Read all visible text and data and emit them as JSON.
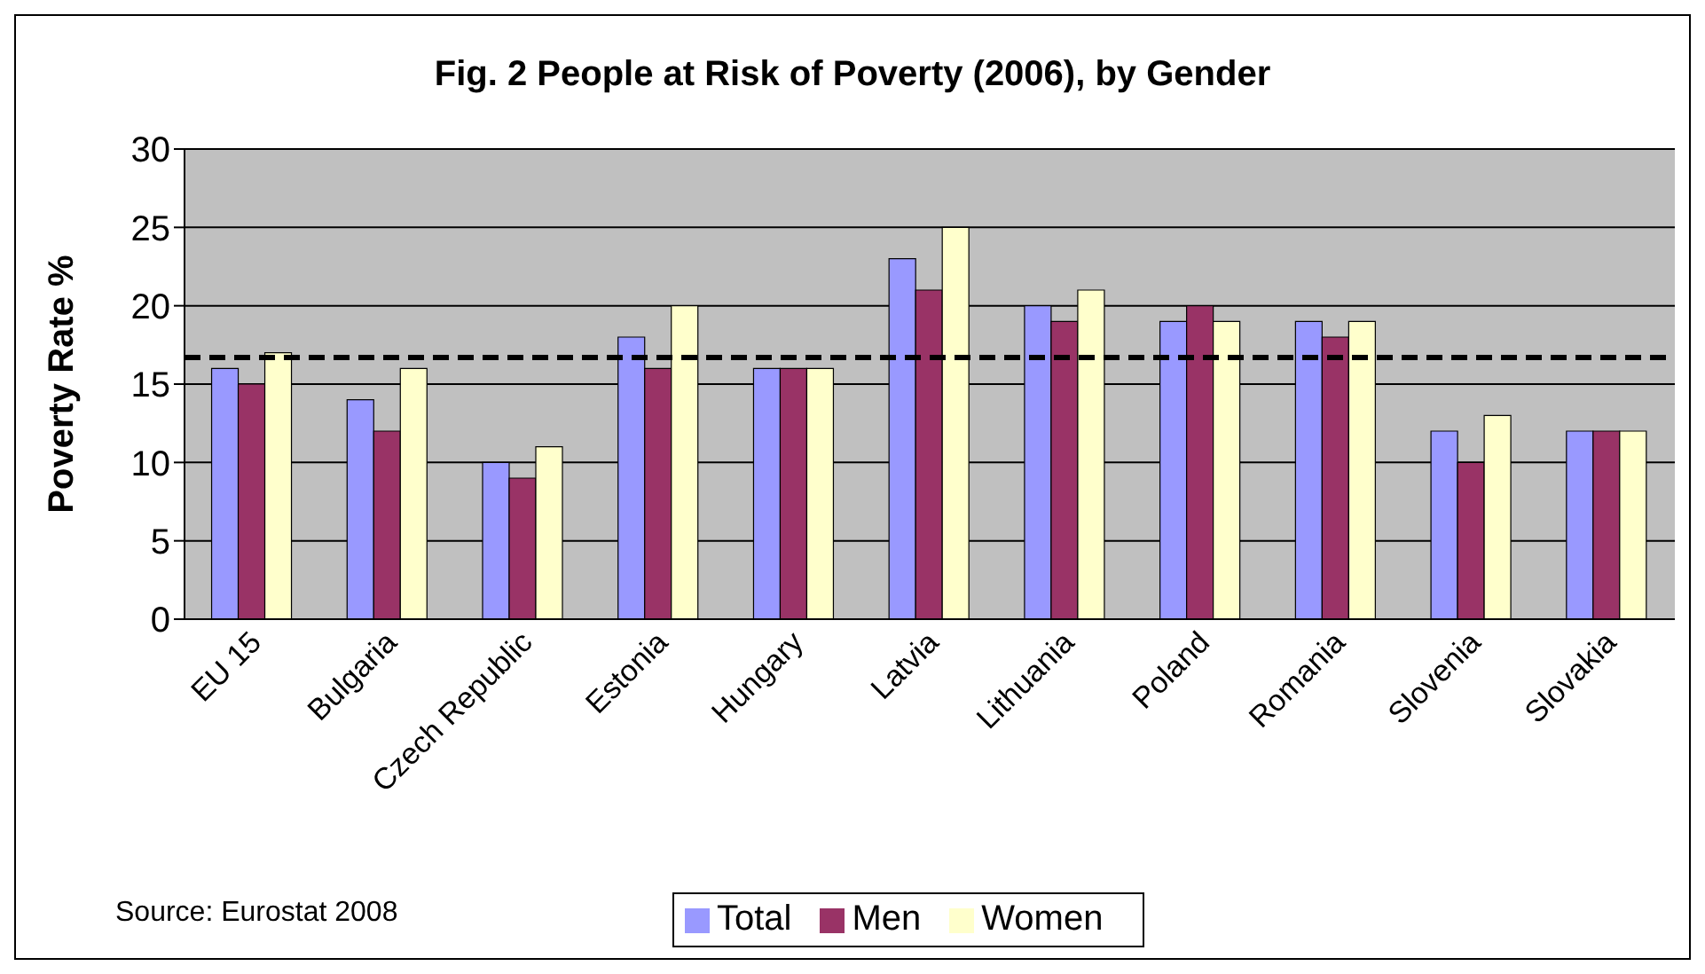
{
  "chart_data": {
    "type": "bar",
    "title": "Fig. 2 People at Risk of Poverty (2006), by Gender",
    "ylabel": "Poverty Rate %",
    "categories": [
      "EU 15",
      "Bulgaria",
      "Czech Republic",
      "Estonia",
      "Hungary",
      "Latvia",
      "Lithuania",
      "Poland",
      "Romania",
      "Slovenia",
      "Slovakia"
    ],
    "series": [
      {
        "name": "Total",
        "color": "#9999ff",
        "values": [
          16,
          14,
          10,
          18,
          16,
          23,
          20,
          19,
          19,
          12,
          12
        ]
      },
      {
        "name": "Men",
        "color": "#993366",
        "values": [
          15,
          12,
          9,
          16,
          16,
          21,
          19,
          20,
          18,
          10,
          12
        ]
      },
      {
        "name": "Women",
        "color": "#ffffcc",
        "values": [
          17,
          16,
          11,
          20,
          16,
          25,
          21,
          19,
          19,
          13,
          12
        ]
      }
    ],
    "ylim": [
      0,
      30
    ],
    "yticks": [
      0,
      5,
      10,
      15,
      20,
      25,
      30
    ],
    "grid": "y",
    "legend": "bottom",
    "ref_lines": [
      {
        "axis": "y",
        "value": 16.7,
        "line_style": "dashed",
        "color": "#000000"
      }
    ],
    "annotations": [
      "Source: Eurostat 2008"
    ]
  }
}
